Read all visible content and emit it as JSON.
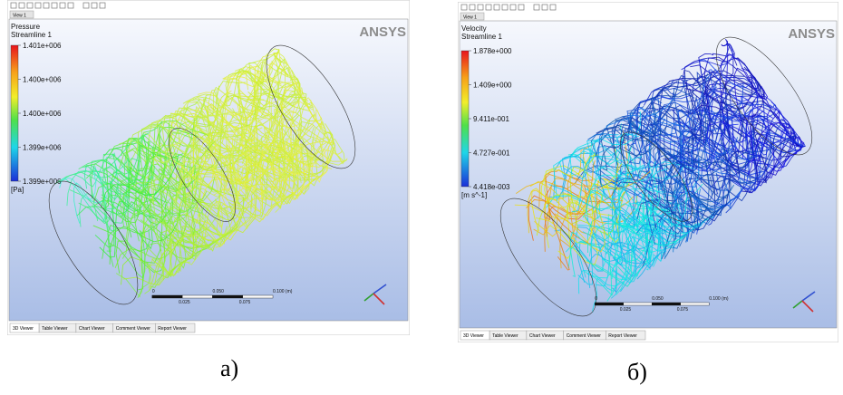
{
  "panels": [
    {
      "view_tab": "View 1",
      "logo": "ANSYS",
      "legend": {
        "title": "Pressure",
        "subtitle": "Streamline 1",
        "labels": [
          "1.401e+006",
          "1.400e+006",
          "1.400e+006",
          "1.399e+006",
          "1.399e+006"
        ],
        "unit": "[Pa]"
      },
      "scale": {
        "top": [
          "0",
          "0.050",
          "0.100 (m)"
        ],
        "bottom": [
          "0.025",
          "0.075"
        ]
      },
      "tabs": [
        "3D Viewer",
        "Table Viewer",
        "Chart Viewer",
        "Comment Viewer",
        "Report Viewer"
      ],
      "caption": "a)"
    },
    {
      "view_tab": "View 1",
      "logo": "ANSYS",
      "legend": {
        "title": "Velocity",
        "subtitle": "Streamline 1",
        "labels": [
          "1.878e+000",
          "1.409e+000",
          "9.411e-001",
          "4.727e-001",
          "4.418e-003"
        ],
        "unit": "[m s^-1]"
      },
      "scale": {
        "top": [
          "0",
          "0.050",
          "0.100 (m)"
        ],
        "bottom": [
          "0.025",
          "0.075"
        ]
      },
      "tabs": [
        "3D Viewer",
        "Table Viewer",
        "Chart Viewer",
        "Comment Viewer",
        "Report Viewer"
      ],
      "caption": "б)"
    }
  ]
}
